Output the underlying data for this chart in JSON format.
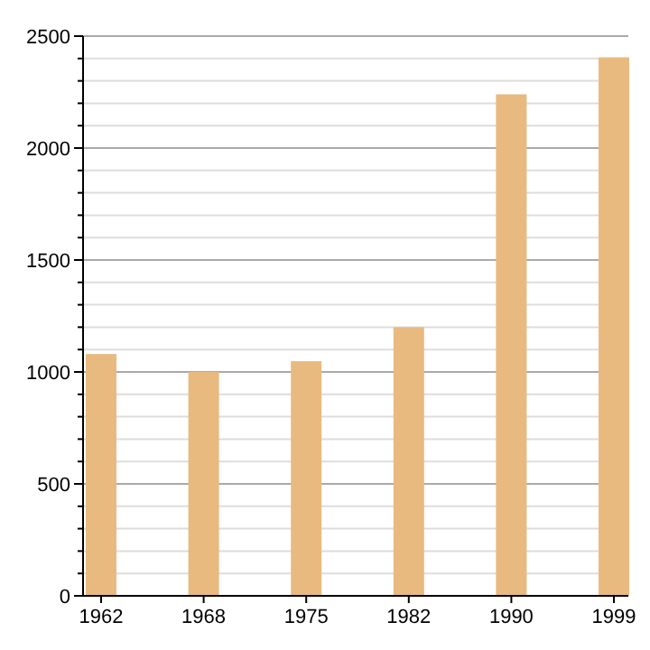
{
  "chart_data": {
    "type": "bar",
    "categories": [
      "1962",
      "1968",
      "1975",
      "1982",
      "1990",
      "1999"
    ],
    "values": [
      1080,
      1000,
      1048,
      1200,
      2240,
      2405
    ],
    "color": "#e8ba80",
    "ylim": [
      0,
      2500
    ],
    "yticks": [
      0,
      {
        "value": 100,
        "label": null
      },
      {
        "value": 200,
        "label": null
      },
      {
        "value": 300,
        "label": null
      },
      {
        "value": 400,
        "label": null
      },
      500,
      {
        "value": 600,
        "label": null
      },
      {
        "value": 700,
        "label": null
      },
      {
        "value": 800,
        "label": null
      },
      {
        "value": 900,
        "label": null
      },
      1000,
      {
        "value": 1100,
        "label": null
      },
      {
        "value": 1200,
        "label": null
      },
      {
        "value": 1300,
        "label": null
      },
      {
        "value": 1400,
        "label": null
      },
      1500,
      {
        "value": 1600,
        "label": null
      },
      {
        "value": 1700,
        "label": null
      },
      {
        "value": 1800,
        "label": null
      },
      {
        "value": 1900,
        "label": null
      },
      2000,
      {
        "value": 2100,
        "label": null
      },
      {
        "value": 2200,
        "label": null
      },
      {
        "value": 2300,
        "label": null
      },
      {
        "value": 2400,
        "label": null
      },
      2500
    ],
    "grid": true
  }
}
